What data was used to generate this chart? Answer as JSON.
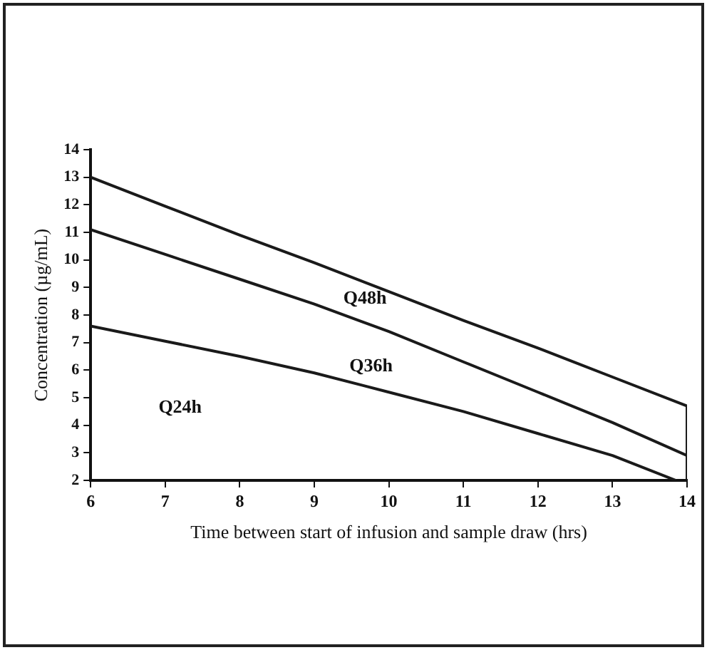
{
  "chart_data": {
    "type": "line",
    "xlabel": "Time between start of infusion and sample draw (hrs)",
    "ylabel": "Concentration (µg/mL)",
    "series": [
      {
        "color": "#1a1a1a",
        "x": [
          6,
          7,
          8,
          9,
          10,
          11,
          12,
          13,
          14
        ],
        "values": [
          13,
          11.95,
          10.9,
          9.9,
          8.85,
          7.8,
          6.8,
          5.75,
          4.7
        ]
      },
      {
        "color": "#1a1a1a",
        "x": [
          6,
          7,
          8,
          9,
          10,
          11,
          12,
          13,
          14
        ],
        "values": [
          11.1,
          10.2,
          9.3,
          8.4,
          7.4,
          6.3,
          5.2,
          4.1,
          2.9
        ]
      },
      {
        "color": "#1a1a1a",
        "x": [
          6,
          7,
          8,
          9,
          10,
          11,
          12,
          13,
          13.85
        ],
        "values": [
          7.6,
          7.05,
          6.5,
          5.9,
          5.2,
          4.5,
          3.7,
          2.9,
          2
        ]
      },
      {
        "color": "#1a1a1a",
        "x": [
          14,
          14
        ],
        "values": [
          2,
          4.7
        ]
      }
    ],
    "annotations": [
      "Q48h",
      "Q36h",
      "Q24h"
    ],
    "xlim": [
      6,
      14
    ],
    "xticks": [
      6,
      7,
      8,
      9,
      10,
      11,
      12,
      13,
      14
    ],
    "ylim": [
      2,
      14
    ],
    "yticks": [
      2,
      3,
      4,
      5,
      6,
      7,
      8,
      9,
      10,
      11,
      12,
      13,
      14
    ],
    "grid": false,
    "legend": false,
    "marker": "none",
    "line_style": "solid"
  }
}
